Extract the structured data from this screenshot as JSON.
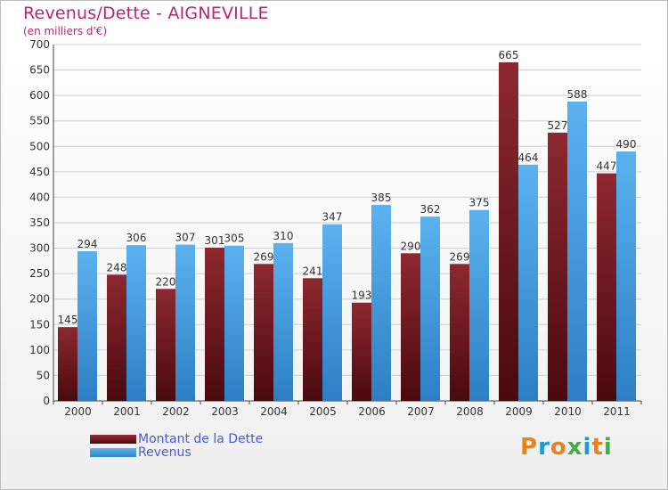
{
  "title": "Revenus/Dette - AIGNEVILLE",
  "subtitle": "(en milliers d'€)",
  "logo_text": "Proxiti",
  "logo_colors": [
    "#e8821e",
    "#1a9ad6",
    "#e8821e",
    "#4aa84a",
    "#1a9ad6",
    "#e8821e",
    "#4aa84a"
  ],
  "chart_data": {
    "type": "bar",
    "categories": [
      "2000",
      "2001",
      "2002",
      "2003",
      "2004",
      "2005",
      "2006",
      "2007",
      "2008",
      "2009",
      "2010",
      "2011"
    ],
    "series": [
      {
        "name": "Montant de la Dette",
        "color": "#7a1e24",
        "values": [
          145,
          248,
          220,
          301,
          269,
          241,
          193,
          290,
          269,
          665,
          527,
          447
        ]
      },
      {
        "name": "Revenus",
        "color": "#4aa3e8",
        "values": [
          294,
          306,
          307,
          305,
          310,
          347,
          385,
          362,
          375,
          464,
          588,
          490
        ]
      }
    ],
    "ylim": [
      0,
      700
    ],
    "yticks": [
      0,
      50,
      100,
      150,
      200,
      250,
      300,
      350,
      400,
      450,
      500,
      550,
      600,
      650,
      700
    ],
    "grid": true,
    "legend_position": "bottom-left"
  }
}
